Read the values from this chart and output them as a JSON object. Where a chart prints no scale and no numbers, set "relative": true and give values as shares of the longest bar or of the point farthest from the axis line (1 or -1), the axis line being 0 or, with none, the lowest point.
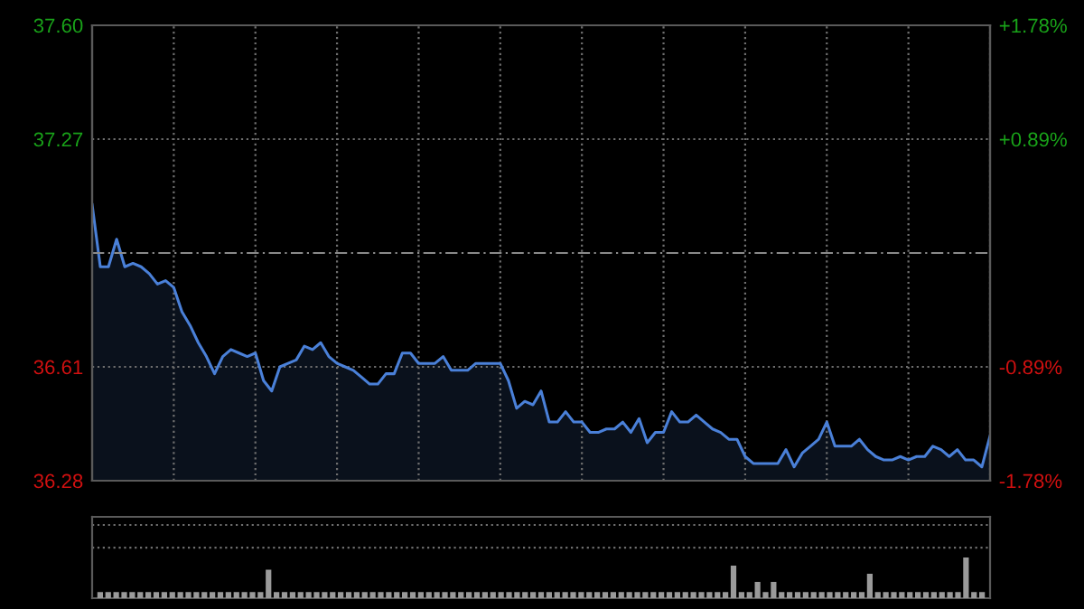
{
  "chart_data": [
    {
      "type": "area",
      "categories": [
        null,
        null,
        null,
        null,
        null,
        null,
        null,
        null,
        null,
        null,
        null,
        null,
        null,
        null,
        null,
        null,
        null,
        null,
        null,
        null,
        null,
        null,
        null,
        null,
        null,
        null,
        null,
        null,
        null,
        null,
        null,
        null,
        null,
        null,
        null,
        null,
        null,
        null,
        null,
        null,
        null,
        null,
        null,
        null,
        null,
        null,
        null,
        null,
        null,
        null,
        null,
        null,
        null,
        null,
        null,
        null,
        null,
        null,
        null,
        null,
        null,
        null,
        null,
        null,
        null,
        null,
        null,
        null,
        null,
        null,
        null,
        null,
        null,
        null,
        null,
        null,
        null,
        null,
        null,
        null,
        null,
        null,
        null,
        null,
        null,
        null,
        null,
        null,
        null,
        null,
        null,
        null,
        null,
        null,
        null,
        null,
        null,
        null,
        null,
        null,
        null,
        null,
        null,
        null,
        null,
        null,
        null,
        null,
        null,
        null,
        null
      ],
      "series": [
        {
          "color": "#4a80d8",
          "values": [
            37.08,
            36.9,
            36.9,
            36.98,
            36.9,
            36.91,
            36.9,
            36.88,
            36.85,
            36.86,
            36.84,
            36.77,
            36.73,
            36.68,
            36.64,
            36.59,
            36.64,
            36.66,
            36.65,
            36.64,
            36.65,
            36.57,
            36.54,
            36.61,
            36.62,
            36.63,
            36.67,
            36.66,
            36.68,
            36.64,
            36.62,
            36.61,
            36.6,
            36.58,
            36.56,
            36.56,
            36.59,
            36.59,
            36.65,
            36.65,
            36.62,
            36.62,
            36.62,
            36.64,
            36.6,
            36.6,
            36.6,
            36.62,
            36.62,
            36.62,
            36.62,
            36.57,
            36.49,
            36.51,
            36.5,
            36.54,
            36.45,
            36.45,
            36.48,
            36.45,
            36.45,
            36.42,
            36.42,
            36.43,
            36.43,
            36.45,
            36.42,
            36.46,
            36.39,
            36.42,
            36.42,
            36.48,
            36.45,
            36.45,
            36.47,
            36.45,
            36.43,
            36.42,
            36.4,
            36.4,
            36.35,
            36.33,
            36.33,
            36.33,
            36.33,
            36.37,
            36.32,
            36.36,
            36.38,
            36.4,
            36.45,
            36.38,
            36.38,
            36.38,
            36.4,
            36.37,
            36.35,
            36.34,
            36.34,
            36.35,
            36.34,
            36.35,
            36.35,
            36.38,
            36.37,
            36.35,
            36.37,
            36.34,
            36.34,
            36.32,
            36.41
          ]
        }
      ],
      "ylim": [
        36.28,
        37.6
      ],
      "yticks": [
        {
          "value": 37.6,
          "label": "37.60"
        },
        37.27,
        36.61,
        {
          "value": 36.28,
          "label": "36.28"
        }
      ],
      "y2lim": [
        -1.78,
        1.78
      ],
      "y2ticks": [
        {
          "value": 1.78,
          "label": "+1.78%"
        },
        {
          "value": 0.89,
          "label": "+0.89%"
        },
        {
          "value": -0.89,
          "label": "-0.89%"
        },
        {
          "value": -1.78,
          "label": "-1.78%"
        }
      ],
      "ref_lines": [
        {
          "axis": "y",
          "value": 36.94,
          "color": "#8a8a8a",
          "line_style": "dashed"
        }
      ],
      "grid": true
    },
    {
      "type": "bar",
      "relative": true,
      "categories": [
        null,
        null,
        null,
        null,
        null,
        null,
        null,
        null,
        null,
        null,
        null,
        null,
        null,
        null,
        null,
        null,
        null,
        null,
        null,
        null,
        null,
        null,
        null,
        null,
        null,
        null,
        null,
        null,
        null,
        null,
        null,
        null,
        null,
        null,
        null,
        null,
        null,
        null,
        null,
        null,
        null,
        null,
        null,
        null,
        null,
        null,
        null,
        null,
        null,
        null,
        null,
        null,
        null,
        null,
        null,
        null,
        null,
        null,
        null,
        null,
        null,
        null,
        null,
        null,
        null,
        null,
        null,
        null,
        null,
        null,
        null,
        null,
        null,
        null,
        null,
        null,
        null,
        null,
        null,
        null,
        null,
        null,
        null,
        null,
        null,
        null,
        null,
        null,
        null,
        null,
        null,
        null,
        null,
        null,
        null,
        null,
        null,
        null,
        null,
        null,
        null,
        null,
        null,
        null,
        null,
        null,
        null,
        null,
        null,
        null,
        null
      ],
      "values": [
        0.15,
        0.15,
        0.15,
        0.15,
        0.15,
        0.15,
        0.15,
        0.15,
        0.15,
        0.15,
        0.15,
        0.15,
        0.15,
        0.15,
        0.15,
        0.15,
        0.15,
        0.15,
        0.15,
        0.15,
        0.15,
        0.7,
        0.15,
        0.15,
        0.15,
        0.15,
        0.15,
        0.15,
        0.15,
        0.15,
        0.15,
        0.15,
        0.15,
        0.15,
        0.15,
        0.15,
        0.15,
        0.15,
        0.15,
        0.15,
        0.15,
        0.15,
        0.15,
        0.15,
        0.15,
        0.15,
        0.15,
        0.15,
        0.15,
        0.15,
        0.15,
        0.15,
        0.15,
        0.15,
        0.15,
        0.15,
        0.15,
        0.15,
        0.15,
        0.15,
        0.15,
        0.15,
        0.15,
        0.15,
        0.15,
        0.15,
        0.15,
        0.15,
        0.15,
        0.15,
        0.15,
        0.15,
        0.15,
        0.15,
        0.15,
        0.15,
        0.15,
        0.15,
        0.15,
        0.8,
        0.15,
        0.15,
        0.4,
        0.15,
        0.4,
        0.15,
        0.15,
        0.15,
        0.15,
        0.15,
        0.15,
        0.15,
        0.15,
        0.15,
        0.15,
        0.15,
        0.6,
        0.15,
        0.15,
        0.15,
        0.15,
        0.15,
        0.15,
        0.15,
        0.15,
        0.15,
        0.15,
        0.15,
        1,
        0.15,
        0.15
      ],
      "color": "#9a9a9a"
    }
  ]
}
